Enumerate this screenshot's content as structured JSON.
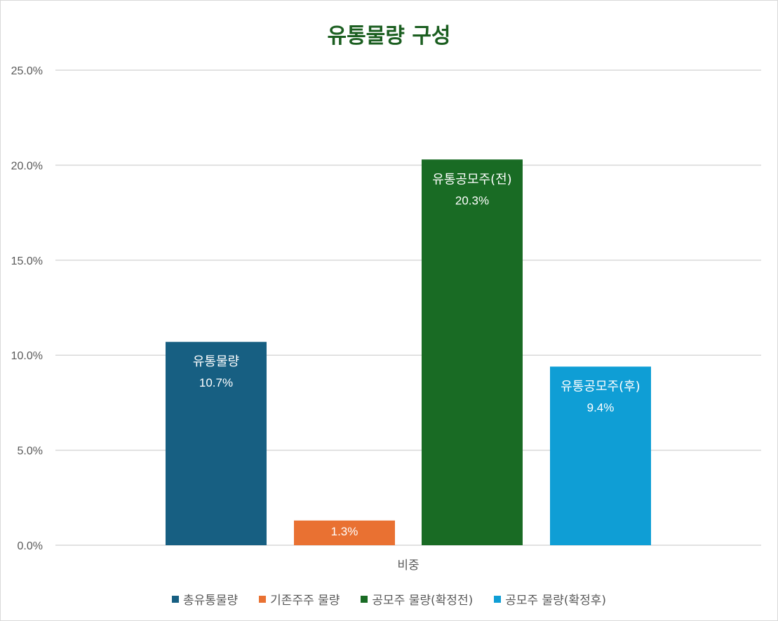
{
  "chart_data": {
    "type": "bar",
    "title": "유통물량 구성",
    "categories": [
      "비중"
    ],
    "series": [
      {
        "name": "총유통물량",
        "values": [
          0.107
        ],
        "color": "#175f82",
        "data_label": "유통물량",
        "value_label": "10.7%"
      },
      {
        "name": "기존주주 물량",
        "values": [
          0.013
        ],
        "color": "#e97132",
        "data_label": "",
        "value_label": "1.3%"
      },
      {
        "name": "공모주 물량(확정전)",
        "values": [
          0.203
        ],
        "color": "#196b24",
        "data_label": "유통공모주(전)",
        "value_label": "20.3%"
      },
      {
        "name": "공모주 물량(확정후)",
        "values": [
          0.094
        ],
        "color": "#0f9ed5",
        "data_label": "유통공모주(후)",
        "value_label": "9.4%"
      }
    ],
    "ylim": [
      0,
      0.25
    ],
    "yticks": [
      {
        "value": 0,
        "label": "0.0%"
      },
      {
        "value": 0.05,
        "label": "5.0%"
      },
      {
        "value": 0.1,
        "label": "10.0%"
      },
      {
        "value": 0.15,
        "label": "15.0%"
      },
      {
        "value": 0.2,
        "label": "20.0%"
      },
      {
        "value": 0.25,
        "label": "25.0%"
      }
    ],
    "grid": true,
    "legend_position": "bottom"
  }
}
